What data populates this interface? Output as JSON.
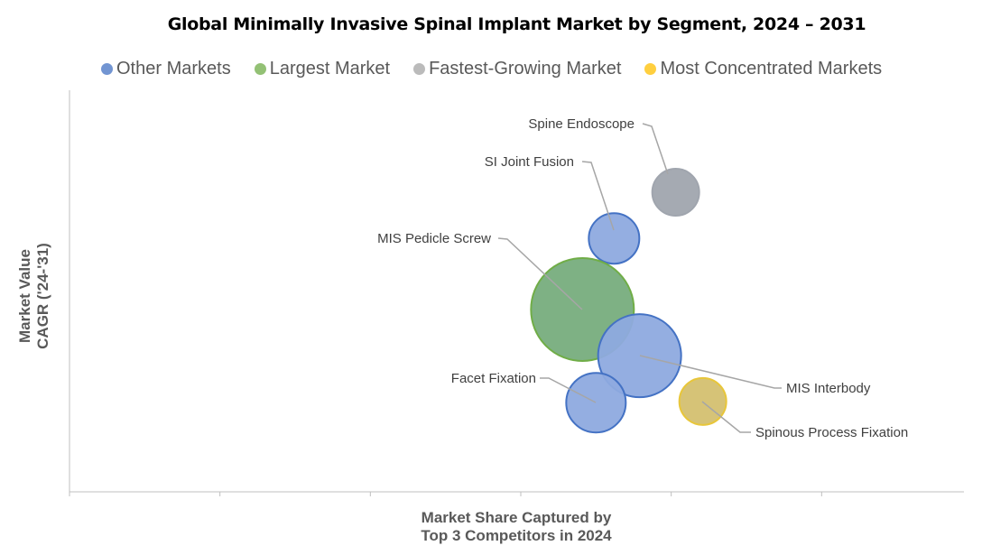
{
  "chart_data": {
    "type": "bubble",
    "title": "Global Minimally Invasive Spinal Implant Market by Segment, 2024 – 2031",
    "xlabel": "Market Share Captured by Top 3 Competitors in 2024",
    "xlabel_lines": [
      "Market Share Captured by",
      "Top 3 Competitors in 2024"
    ],
    "ylabel_lines": [
      "Market Value",
      "CAGR ('24-'31)"
    ],
    "xlim": [
      0,
      6
    ],
    "ylim": [
      0,
      10
    ],
    "x_ticks": [
      0,
      1,
      2,
      3,
      4,
      5
    ],
    "tick_labels_shown": false,
    "grid": false,
    "legend_placement": "top",
    "legend": [
      {
        "name": "Other Markets",
        "color": "#4472c4"
      },
      {
        "name": "Largest Market",
        "color": "#70ad47"
      },
      {
        "name": "Fastest-Growing Market",
        "color": "#a5a5a5"
      },
      {
        "name": "Most Concentrated Markets",
        "color": "#ffc000"
      }
    ],
    "points": [
      {
        "label": "Spine Endoscope",
        "x": 4.03,
        "y": 7.46,
        "size": 676,
        "category": "Fastest-Growing Market",
        "fill": "#a0a5ae",
        "stroke": "#a0a5ae"
      },
      {
        "label": "SI Joint Fusion",
        "x": 3.62,
        "y": 6.31,
        "size": 784,
        "category": "Other Markets",
        "fill": "#8eaadf",
        "stroke": "#4472c4"
      },
      {
        "label": "MIS Pedicle Screw",
        "x": 3.41,
        "y": 4.54,
        "size": 3249,
        "category": "Largest Market",
        "fill": "#77ad7d",
        "stroke": "#70ad47"
      },
      {
        "label": "MIS Interbody",
        "x": 3.79,
        "y": 3.39,
        "size": 2116,
        "category": "Other Markets",
        "fill": "#8eaadf",
        "stroke": "#4472c4"
      },
      {
        "label": "Facet Fixation",
        "x": 3.5,
        "y": 2.22,
        "size": 1089,
        "category": "Other Markets",
        "fill": "#8eaadf",
        "stroke": "#4472c4"
      },
      {
        "label": "Spinous Process Fixation",
        "x": 4.21,
        "y": 2.25,
        "size": 676,
        "category": "Most Concentrated Markets",
        "fill": "#d4c070",
        "stroke": "#e8c63a"
      }
    ]
  }
}
